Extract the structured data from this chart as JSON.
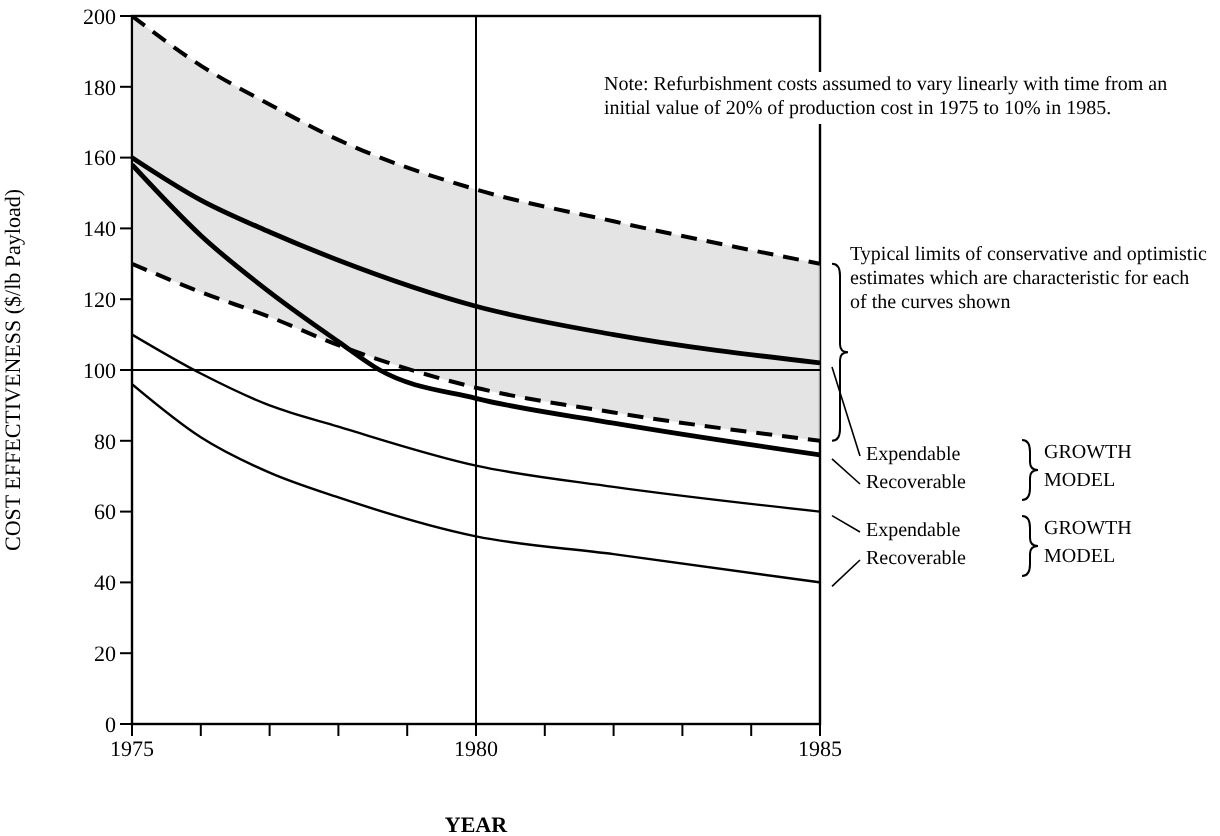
{
  "chart_data": {
    "type": "line",
    "xlabel": "YEAR",
    "ylabel": "COST EFFECTIVENESS ($/lb Payload)",
    "xlim": [
      1975,
      1985
    ],
    "ylim": [
      0,
      200
    ],
    "xticks": [
      1975,
      {
        "value": 1976,
        "label": null
      },
      {
        "value": 1977,
        "label": null
      },
      {
        "value": 1978,
        "label": null
      },
      {
        "value": 1979,
        "label": null
      },
      1980,
      {
        "value": 1981,
        "label": null
      },
      {
        "value": 1982,
        "label": null
      },
      {
        "value": 1983,
        "label": null
      },
      {
        "value": 1984,
        "label": null
      },
      1985
    ],
    "yticks": [
      0,
      20,
      40,
      60,
      80,
      100,
      120,
      140,
      160,
      180,
      200
    ],
    "marker": "none",
    "grid": false,
    "legend": "right",
    "series": [
      {
        "name": "Expendable",
        "color": "#000000",
        "x": [
          1975,
          1976,
          1977,
          1978,
          1980,
          1982,
          1985
        ],
        "values": [
          160,
          148,
          139,
          131,
          118,
          110,
          102
        ],
        "lower": [
          130,
          122,
          115,
          107,
          95,
          88,
          80
        ],
        "upper": [
          200,
          186,
          175,
          165,
          151,
          142,
          130
        ]
      },
      {
        "name": "Recoverable",
        "color": "#000000",
        "x": [
          1975,
          1976,
          1977,
          1978,
          1978.6,
          1980,
          1982,
          1985
        ],
        "values": [
          158,
          138,
          122,
          108,
          100,
          92,
          85,
          76
        ]
      },
      {
        "name": "Expendable",
        "color": "#000000",
        "x": [
          1975,
          1976,
          1977,
          1978,
          1980,
          1982,
          1985
        ],
        "values": [
          110,
          99,
          90,
          84,
          73,
          67,
          60
        ]
      },
      {
        "color": "#000000",
        "line_style": "dashed",
        "x": [
          1975,
          1976,
          1977,
          1978,
          1980,
          1982,
          1985
        ],
        "values": [
          200,
          186,
          175,
          165,
          151,
          142,
          130
        ]
      },
      {
        "color": "#000000",
        "line_style": "dashed",
        "x": [
          1975,
          1976,
          1977,
          1978,
          1980,
          1982,
          1985
        ],
        "values": [
          130,
          122,
          115,
          107,
          95,
          88,
          80
        ]
      },
      {
        "name": "Recoverable",
        "color": "#000000",
        "x": [
          1975,
          1976,
          1977,
          1978,
          1980,
          1982,
          1985
        ],
        "values": [
          96,
          81,
          71,
          64,
          53,
          48,
          40
        ]
      }
    ],
    "ref_lines": [
      {
        "axis": "x",
        "value": 1980,
        "color": "#000000"
      },
      {
        "axis": "y",
        "value": 100,
        "color": "#000000"
      }
    ],
    "annotations": [
      "Note:  Refurbishment costs assumed to vary linearly with time from an initial value of 20% of production cost in 1975 to 10% in 1985.",
      "Typical limits of conservative and optimistic estimates which are characteristic for each of the curves shown",
      "GROWTH MODEL",
      "GROWTH MODEL"
    ]
  }
}
